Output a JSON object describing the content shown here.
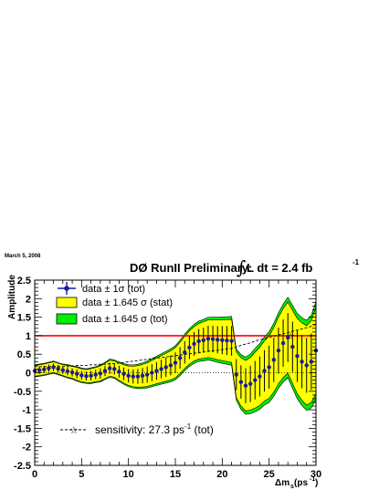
{
  "date_label": "March 5, 2008",
  "title_prefix": "DØ RunII Preliminary:",
  "title_integral": "∫",
  "title_suffix": "L dt = 2.4 fb",
  "title_superscript": "-1",
  "colors": {
    "stat_band": "#ffff00",
    "tot_band": "#00ee00",
    "points": "#1a1aa0",
    "unity_line": "#ff0000",
    "band_outline": "#000000"
  },
  "chart_data": {
    "type": "line",
    "title": "DØ RunII Preliminary: ∫ L dt = 2.4 fb-1",
    "xlabel": "Δm_s (ps^-1)",
    "ylabel": "Amplitude",
    "xlim": [
      0,
      30
    ],
    "ylim": [
      -2.5,
      2.5
    ],
    "x_ticks": [
      "0",
      "5",
      "10",
      "15",
      "20",
      "25",
      "30"
    ],
    "y_ticks": [
      "-2.5",
      "-2",
      "-1.5",
      "-1",
      "-0.5",
      "0",
      "0.5",
      "1",
      "1.5",
      "2",
      "2.5"
    ],
    "x": [
      0,
      0.5,
      1,
      1.5,
      2,
      2.5,
      3,
      3.5,
      4,
      4.5,
      5,
      5.5,
      6,
      6.5,
      7,
      7.5,
      8,
      8.5,
      9,
      9.5,
      10,
      10.5,
      11,
      11.5,
      12,
      12.5,
      13,
      13.5,
      14,
      14.5,
      15,
      15.5,
      16,
      16.5,
      17,
      17.5,
      18,
      18.5,
      19,
      19.5,
      20,
      20.5,
      21,
      21.5,
      22,
      22.5,
      23,
      23.5,
      24,
      24.5,
      25,
      25.5,
      26,
      26.5,
      27,
      27.5,
      28,
      28.5,
      29,
      29.5,
      30
    ],
    "series": [
      {
        "name": "data ± 1σ (tot)",
        "values": [
          0.05,
          0.07,
          0.09,
          0.12,
          0.15,
          0.11,
          0.07,
          0.04,
          0.01,
          -0.03,
          -0.07,
          -0.09,
          -0.08,
          -0.05,
          -0.02,
          0.05,
          0.12,
          0.1,
          0.03,
          -0.03,
          -0.08,
          -0.1,
          -0.1,
          -0.08,
          -0.05,
          0.0,
          0.05,
          0.1,
          0.15,
          0.2,
          0.27,
          0.4,
          0.55,
          0.68,
          0.78,
          0.85,
          0.88,
          0.92,
          0.91,
          0.89,
          0.88,
          0.87,
          0.86,
          -0.05,
          -0.25,
          -0.35,
          -0.3,
          -0.2,
          -0.1,
          0.05,
          0.15,
          0.35,
          0.6,
          0.8,
          0.95,
          0.7,
          0.45,
          0.3,
          0.2,
          0.3,
          0.6
        ],
        "errors": [
          0.1,
          0.1,
          0.1,
          0.1,
          0.1,
          0.1,
          0.1,
          0.11,
          0.11,
          0.12,
          0.12,
          0.12,
          0.13,
          0.13,
          0.14,
          0.14,
          0.15,
          0.15,
          0.16,
          0.17,
          0.18,
          0.19,
          0.2,
          0.21,
          0.22,
          0.23,
          0.24,
          0.25,
          0.26,
          0.27,
          0.28,
          0.29,
          0.3,
          0.31,
          0.32,
          0.33,
          0.34,
          0.35,
          0.36,
          0.37,
          0.38,
          0.39,
          0.4,
          0.42,
          0.45,
          0.47,
          0.49,
          0.52,
          0.54,
          0.56,
          0.58,
          0.6,
          0.62,
          0.64,
          0.66,
          0.68,
          0.7,
          0.72,
          0.74,
          0.76,
          0.8
        ]
      }
    ],
    "legend": [
      "data ± 1σ (tot)",
      "data ± 1.645 σ (stat)",
      "data ± 1.645 σ (tot)"
    ],
    "sensitivity_label": "sensitivity: 27.3 ps",
    "sensitivity_superscript": "-1",
    "sensitivity_suffix": " (tot)",
    "unity_line_value": 1.0,
    "grid": false,
    "legend_placement": "top-left"
  }
}
